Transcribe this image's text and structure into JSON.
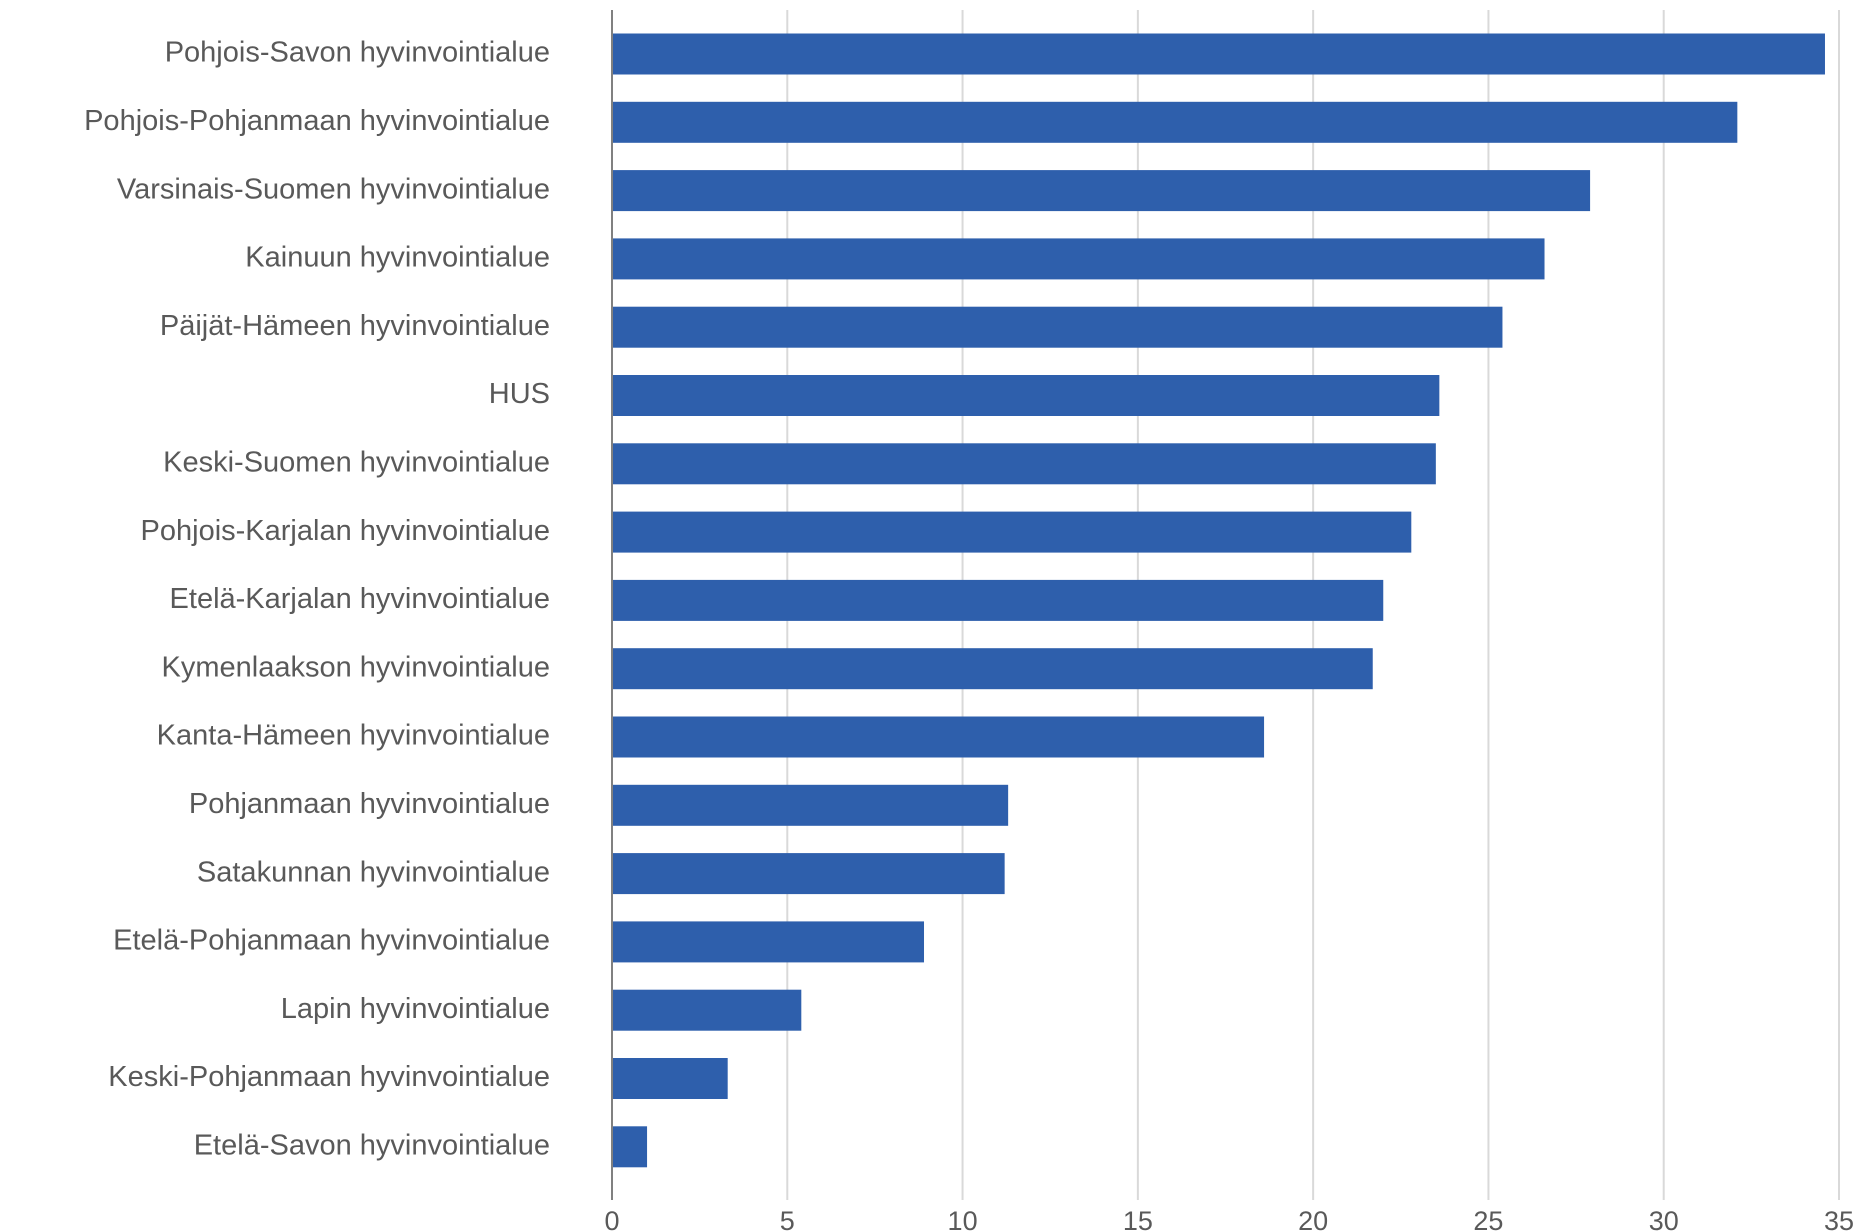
{
  "chart_data": {
    "type": "bar",
    "orientation": "horizontal",
    "title": "",
    "xlabel": "",
    "ylabel": "",
    "categories": [
      "Pohjois-Savon hyvinvointialue",
      "Pohjois-Pohjanmaan hyvinvointialue",
      "Varsinais-Suomen hyvinvointialue",
      "Kainuun hyvinvointialue",
      "Päijät-Hämeen hyvinvointialue",
      "HUS",
      "Keski-Suomen hyvinvointialue",
      "Pohjois-Karjalan hyvinvointialue",
      "Etelä-Karjalan hyvinvointialue",
      "Kymenlaakson hyvinvointialue",
      "Kanta-Hämeen hyvinvointialue",
      "Pohjanmaan hyvinvointialue",
      "Satakunnan hyvinvointialue",
      "Etelä-Pohjanmaan hyvinvointialue",
      "Lapin hyvinvointialue",
      "Keski-Pohjanmaan hyvinvointialue",
      "Etelä-Savon hyvinvointialue"
    ],
    "values": [
      34.6,
      32.1,
      27.9,
      26.6,
      25.4,
      23.6,
      23.5,
      22.8,
      22.0,
      21.7,
      18.6,
      11.3,
      11.2,
      8.9,
      5.4,
      3.3,
      1.0
    ],
    "xlim": [
      0,
      35
    ],
    "xticks": [
      0,
      5,
      10,
      15,
      20,
      25,
      30,
      35
    ],
    "grid": true,
    "bar_color": "#2e5fac"
  }
}
